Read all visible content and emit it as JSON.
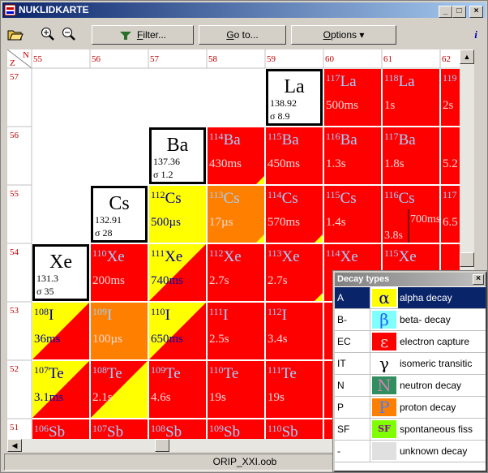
{
  "window": {
    "title": "NUKLIDKARTE"
  },
  "toolbar": {
    "filter": "Filter...",
    "goto": "Go to...",
    "options": "Options"
  },
  "chart_header": {
    "z_label": "Z",
    "n_label": "N"
  },
  "columns": [
    55,
    56,
    57,
    58,
    59,
    60,
    61,
    62
  ],
  "rows": [
    {
      "z": 57,
      "cells": [
        null,
        null,
        null,
        null,
        {
          "symbol": "La",
          "weight": "138.92",
          "sigma": "σ 8.9"
        },
        {
          "mass": "117",
          "symbol": "La",
          "halflife": "500ms",
          "colors": [
            "#ff0000"
          ]
        },
        {
          "mass": "118",
          "symbol": "La",
          "halflife": "1s",
          "colors": [
            "#ff0000"
          ]
        },
        {
          "mass": "119",
          "halflife": "2s",
          "colors": [
            "#ff0000"
          ]
        }
      ]
    },
    {
      "z": 56,
      "cells": [
        null,
        null,
        {
          "symbol": "Ba",
          "weight": "137.36",
          "sigma": "σ 1.2"
        },
        {
          "mass": "114",
          "symbol": "Ba",
          "halflife": "430ms",
          "colors": [
            "#ff0000"
          ],
          "corner": "#ffff00"
        },
        {
          "mass": "115",
          "symbol": "Ba",
          "halflife": "450ms",
          "colors": [
            "#ff0000"
          ]
        },
        {
          "mass": "116",
          "symbol": "Ba",
          "halflife": "1.3s",
          "colors": [
            "#ff0000"
          ]
        },
        {
          "mass": "117",
          "symbol": "Ba",
          "halflife": "1.8s",
          "colors": [
            "#ff0000"
          ]
        },
        {
          "halflife": "5.2",
          "colors": [
            "#ff0000"
          ]
        }
      ]
    },
    {
      "z": 55,
      "cells": [
        null,
        {
          "symbol": "Cs",
          "weight": "132.91",
          "sigma": "σ 28"
        },
        {
          "mass": "112",
          "symbol": "Cs",
          "halflife": "500µs",
          "colors": [
            "#ffff00"
          ]
        },
        {
          "mass": "113",
          "symbol": "Cs",
          "halflife": "17µs",
          "colors": [
            "#ff8000"
          ],
          "corner": "#ffff00"
        },
        {
          "mass": "114",
          "symbol": "Cs",
          "halflife": "570ms",
          "colors": [
            "#ff0000"
          ],
          "corner": "#ffff00"
        },
        {
          "mass": "115",
          "symbol": "Cs",
          "halflife": "1.4s",
          "colors": [
            "#ff0000"
          ]
        },
        {
          "mass": "116",
          "symbol": "Cs",
          "halflife": "3.8s",
          "halflife2": "700ms",
          "colors": [
            "#ff0000"
          ]
        },
        {
          "mass": "117",
          "halflife": "6.5",
          "colors": [
            "#ff0000"
          ]
        }
      ]
    },
    {
      "z": 54,
      "cells": [
        {
          "symbol": "Xe",
          "weight": "131.3",
          "sigma": "σ 35"
        },
        {
          "mass": "110",
          "symbol": "Xe",
          "halflife": "200ms",
          "colors": [
            "#ff0000"
          ]
        },
        {
          "mass": "111",
          "symbol": "Xe",
          "halflife": "740ms",
          "colors": [
            "#ffff00",
            "#ff0000"
          ]
        },
        {
          "mass": "112",
          "symbol": "Xe",
          "halflife": "2.7s",
          "colors": [
            "#ff0000"
          ]
        },
        {
          "mass": "113",
          "symbol": "Xe",
          "halflife": "2.7s",
          "colors": [
            "#ff0000"
          ],
          "corner": "#ffff00"
        },
        {
          "mass": "114",
          "symbol": "Xe",
          "colors": [
            "#ff0000"
          ]
        },
        {
          "mass": "115",
          "symbol": "Xe",
          "colors": [
            "#ff0000"
          ]
        },
        {
          "colors": [
            "#ff0000"
          ]
        }
      ]
    },
    {
      "z": 53,
      "cells": [
        {
          "mass": "108",
          "symbol": "I",
          "halflife": "36ms",
          "colors": [
            "#ffff00",
            "#ff0000"
          ]
        },
        {
          "mass": "109",
          "symbol": "I",
          "halflife": "100µs",
          "colors": [
            "#ff8000"
          ]
        },
        {
          "mass": "110",
          "symbol": "I",
          "halflife": "650ms",
          "colors": [
            "#ffff00",
            "#ff0000"
          ]
        },
        {
          "mass": "111",
          "symbol": "I",
          "halflife": "2.5s",
          "colors": [
            "#ff0000"
          ]
        },
        {
          "mass": "112",
          "symbol": "I",
          "halflife": "3.4s",
          "colors": [
            "#ff0000"
          ]
        },
        {
          "colors": [
            "#ff0000"
          ]
        },
        {
          "colors": [
            "#ff0000"
          ]
        },
        {
          "colors": [
            "#ff0000"
          ]
        }
      ]
    },
    {
      "z": 52,
      "cells": [
        {
          "mass": "107",
          "symbol": "Te",
          "halflife": "3.1ms",
          "colors": [
            "#ffff00",
            "#ff0000"
          ]
        },
        {
          "mass": "108",
          "symbol": "Te",
          "halflife": "2.1s",
          "colors": [
            "#ff0000",
            "#ffff00"
          ]
        },
        {
          "mass": "109",
          "symbol": "Te",
          "halflife": "4.6s",
          "colors": [
            "#ff0000"
          ]
        },
        {
          "mass": "110",
          "symbol": "Te",
          "halflife": "19s",
          "colors": [
            "#ff0000"
          ]
        },
        {
          "mass": "111",
          "symbol": "Te",
          "halflife": "19s",
          "colors": [
            "#ff0000"
          ]
        },
        {
          "colors": [
            "#ff0000"
          ]
        },
        {
          "colors": [
            "#ff0000"
          ]
        },
        {
          "colors": [
            "#ff0000"
          ]
        }
      ]
    },
    {
      "z": 51,
      "cells": [
        {
          "mass": "106",
          "symbol": "Sb",
          "colors": [
            "#ff0000"
          ]
        },
        {
          "mass": "107",
          "symbol": "Sb",
          "colors": [
            "#ff0000"
          ]
        },
        {
          "mass": "108",
          "symbol": "Sb",
          "colors": [
            "#ff0000"
          ]
        },
        {
          "mass": "109",
          "symbol": "Sb",
          "colors": [
            "#ff0000"
          ]
        },
        {
          "mass": "110",
          "symbol": "Sb",
          "colors": [
            "#ff0000"
          ]
        },
        {
          "colors": [
            "#ff0000"
          ]
        },
        {
          "colors": [
            "#ff0000"
          ]
        },
        {
          "colors": [
            "#ff0000"
          ]
        }
      ]
    }
  ],
  "decay_panel": {
    "title": "Decay types",
    "items": [
      {
        "code": "A",
        "symbol": "α",
        "description": "alpha decay",
        "color": "#ffff00",
        "symbol_color": "#0000a0",
        "selected": true
      },
      {
        "code": "B-",
        "symbol": "β",
        "description": "beta- decay",
        "color": "#80ffff",
        "symbol_color": "#2060ff"
      },
      {
        "code": "EC",
        "symbol": "ε",
        "description": "electron capture",
        "color": "#ff0000",
        "symbol_color": "#ffd0d0"
      },
      {
        "code": "IT",
        "symbol": "γ",
        "description": "isomeric transitic",
        "color": "#ffffff",
        "symbol_color": "#000000"
      },
      {
        "code": "N",
        "symbol": "N",
        "description": "neutron decay",
        "color": "#2f8f5f",
        "symbol_color": "#d080b0"
      },
      {
        "code": "P",
        "symbol": "P",
        "description": "proton decay",
        "color": "#ff8000",
        "symbol_color": "#4080ff"
      },
      {
        "code": "SF",
        "symbol": "SF",
        "description": "spontaneous fiss",
        "color": "#80ff00",
        "symbol_color": "#8000a0"
      },
      {
        "code": "-",
        "description": "unknown decay",
        "color": "#e0e0e0"
      }
    ]
  },
  "status": "ORIP_XXI.oob"
}
